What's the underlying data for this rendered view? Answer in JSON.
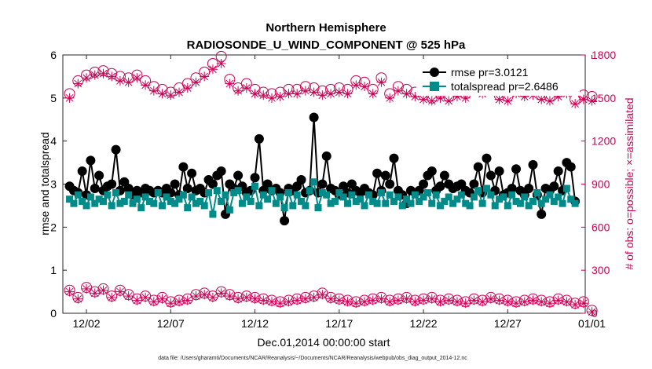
{
  "chart_data": {
    "type": "line",
    "title": "Northern Hemisphere",
    "subtitle": "RADIOSONDE_U_WIND_COMPONENT @ 525 hPa",
    "xlabel": "Dec.01,2014 00:00:00 start",
    "ylabel_left": "rmse and totalspread",
    "ylabel_right": "# of obs: o=possible; ×=assimilated",
    "footnote": "data file: /Users/gharamti/Documents/NCAR/Reanalysis/~/Documents/NCAR/Reanalysis/webpub/obs_diag_output_2014-12.nc",
    "x_range": [
      0.6,
      31.6
    ],
    "x_ticks": [
      {
        "v": 2,
        "label": "12/02"
      },
      {
        "v": 7,
        "label": "12/07"
      },
      {
        "v": 12,
        "label": "12/12"
      },
      {
        "v": 17,
        "label": "12/17"
      },
      {
        "v": 22,
        "label": "12/22"
      },
      {
        "v": 27,
        "label": "12/27"
      },
      {
        "v": 32,
        "label": "01/01"
      }
    ],
    "ylim_left": [
      0,
      6
    ],
    "yticks_left": [
      "0",
      "1",
      "2",
      "3",
      "4",
      "5",
      "6"
    ],
    "ylim_right": [
      0,
      1800
    ],
    "yticks_right": [
      "0",
      "300",
      "600",
      "900",
      "1200",
      "1500",
      "1800"
    ],
    "colors": {
      "rmse": "#000000",
      "spread": "#008b8b",
      "obs": "#cc0055"
    },
    "legend": {
      "position": "top-right",
      "items": [
        {
          "label": "rmse pr=3.0121",
          "color": "#000000",
          "marker": "circle"
        },
        {
          "label": "totalspread pr=2.6486",
          "color": "#008b8b",
          "marker": "square"
        }
      ]
    },
    "series": [
      {
        "name": "rmse",
        "axis": "left",
        "x_start": 1.0,
        "x_step": 0.25,
        "values": [
          2.95,
          2.85,
          2.8,
          3.3,
          2.75,
          3.55,
          2.9,
          3.2,
          2.85,
          2.95,
          3.0,
          3.8,
          2.85,
          3.05,
          2.9,
          2.75,
          2.85,
          2.8,
          2.9,
          2.85,
          2.8,
          2.85,
          2.8,
          2.9,
          2.8,
          3.0,
          2.75,
          3.4,
          2.9,
          3.25,
          2.85,
          2.9,
          2.8,
          3.1,
          3.0,
          3.2,
          3.3,
          2.3,
          3.0,
          2.9,
          3.2,
          2.95,
          2.8,
          2.85,
          3.15,
          4.05,
          2.85,
          3.0,
          2.85,
          2.9,
          2.8,
          2.15,
          2.9,
          2.85,
          2.95,
          3.1,
          2.8,
          2.85,
          4.55,
          2.8,
          3.0,
          3.65,
          2.9,
          2.85,
          2.75,
          2.95,
          2.8,
          3.0,
          2.85,
          2.8,
          2.9,
          2.8,
          2.75,
          3.25,
          2.85,
          3.2,
          3.0,
          3.6,
          2.85,
          2.75,
          2.55,
          2.85,
          2.8,
          2.85,
          3.0,
          3.2,
          3.3,
          2.85,
          2.95,
          3.2,
          3.0,
          2.9,
          2.95,
          3.0,
          2.85,
          2.8,
          3.0,
          3.4,
          2.8,
          3.6,
          3.2,
          2.85,
          3.3,
          2.75,
          2.8,
          2.9,
          3.35,
          2.85,
          2.75,
          2.9,
          3.45,
          2.75,
          2.3,
          2.9,
          2.85,
          2.95,
          3.3,
          2.85,
          3.5,
          3.4,
          2.6
        ]
      },
      {
        "name": "totalspread",
        "axis": "left",
        "x_start": 1.0,
        "x_step": 0.25,
        "values": [
          2.65,
          2.55,
          2.75,
          2.6,
          2.5,
          2.7,
          2.55,
          2.65,
          2.6,
          2.75,
          2.5,
          2.8,
          2.55,
          2.6,
          2.75,
          2.55,
          2.65,
          2.45,
          2.7,
          2.6,
          2.55,
          2.8,
          2.5,
          2.7,
          2.6,
          2.55,
          2.65,
          2.75,
          2.45,
          2.7,
          2.55,
          2.6,
          2.5,
          2.8,
          2.3,
          2.85,
          2.6,
          2.75,
          2.4,
          2.8,
          2.85,
          2.55,
          2.7,
          2.6,
          2.95,
          2.5,
          2.75,
          2.65,
          2.85,
          2.55,
          2.7,
          2.45,
          2.8,
          2.5,
          2.75,
          2.6,
          2.5,
          2.85,
          3.05,
          2.45,
          2.8,
          2.75,
          2.55,
          2.6,
          2.8,
          2.7,
          2.55,
          2.75,
          2.6,
          2.65,
          2.5,
          2.75,
          2.6,
          2.55,
          2.8,
          2.55,
          2.75,
          2.6,
          2.7,
          2.5,
          2.65,
          2.55,
          2.75,
          2.6,
          2.7,
          2.8,
          2.55,
          2.75,
          2.5,
          2.6,
          2.7,
          2.55,
          2.65,
          2.75,
          2.55,
          2.5,
          2.7,
          2.85,
          2.55,
          2.9,
          2.75,
          2.5,
          2.65,
          2.7,
          2.5,
          2.75,
          2.6,
          2.55,
          2.7,
          2.5,
          2.6,
          2.8,
          2.55,
          2.65,
          2.75,
          2.6,
          2.7,
          2.55,
          2.9,
          2.65,
          2.55
        ]
      },
      {
        "name": "obs possible",
        "axis": "right",
        "marker": "circle-open",
        "x_start": 1.0,
        "x_step": 0.5,
        "values": [
          1530,
          1620,
          1660,
          1680,
          1690,
          1670,
          1650,
          1640,
          1660,
          1620,
          1580,
          1560,
          1540,
          1570,
          1600,
          1640,
          1680,
          1740,
          1790,
          1630,
          1570,
          1600,
          1560,
          1540,
          1530,
          1540,
          1560,
          1560,
          1580,
          1570,
          1550,
          1560,
          1570,
          1560,
          1620,
          1610,
          1560,
          1640,
          1530,
          1580,
          1560,
          1540,
          1520,
          1500,
          1530,
          1510,
          1540,
          1530,
          1590,
          1560,
          1600,
          1520,
          1510,
          1560,
          1540,
          1550,
          1520,
          1510,
          1540,
          1560,
          1490,
          1520,
          1510
        ]
      },
      {
        "name": "obs assimilated",
        "axis": "right",
        "marker": "cross",
        "x_start": 1.0,
        "x_step": 0.5,
        "values": [
          1500,
          1600,
          1640,
          1660,
          1670,
          1650,
          1620,
          1610,
          1640,
          1590,
          1550,
          1530,
          1520,
          1540,
          1570,
          1610,
          1650,
          1700,
          1740,
          1600,
          1550,
          1570,
          1530,
          1520,
          1500,
          1510,
          1530,
          1530,
          1550,
          1540,
          1520,
          1530,
          1540,
          1530,
          1590,
          1580,
          1530,
          1610,
          1500,
          1550,
          1530,
          1510,
          1490,
          1480,
          1500,
          1480,
          1510,
          1500,
          1560,
          1530,
          1570,
          1490,
          1480,
          1530,
          1510,
          1520,
          1490,
          1480,
          1510,
          1530,
          1460,
          1490,
          1480
        ]
      },
      {
        "name": "obs possible low",
        "axis": "right",
        "marker": "circle-open",
        "x_start": 1.0,
        "x_step": 0.5,
        "values": [
          160,
          110,
          180,
          150,
          170,
          120,
          160,
          130,
          100,
          120,
          90,
          110,
          80,
          90,
          100,
          130,
          140,
          120,
          150,
          130,
          110,
          120,
          110,
          100,
          90,
          80,
          90,
          100,
          110,
          120,
          140,
          110,
          100,
          90,
          80,
          90,
          100,
          110,
          90,
          100,
          110,
          90,
          100,
          110,
          90,
          100,
          90,
          80,
          100,
          90,
          110,
          100,
          90,
          80,
          90,
          100,
          90,
          80,
          100,
          90,
          70,
          80,
          20
        ]
      },
      {
        "name": "obs assimilated low",
        "axis": "right",
        "marker": "cross",
        "x_start": 1.0,
        "x_step": 0.5,
        "values": [
          150,
          100,
          170,
          140,
          160,
          110,
          150,
          120,
          90,
          110,
          80,
          100,
          70,
          80,
          90,
          120,
          130,
          110,
          140,
          120,
          100,
          110,
          100,
          90,
          80,
          70,
          80,
          90,
          100,
          110,
          130,
          100,
          90,
          80,
          70,
          80,
          90,
          100,
          80,
          90,
          100,
          80,
          90,
          100,
          80,
          90,
          80,
          70,
          90,
          80,
          100,
          90,
          80,
          70,
          80,
          90,
          80,
          70,
          90,
          80,
          60,
          70,
          10
        ]
      }
    ]
  }
}
